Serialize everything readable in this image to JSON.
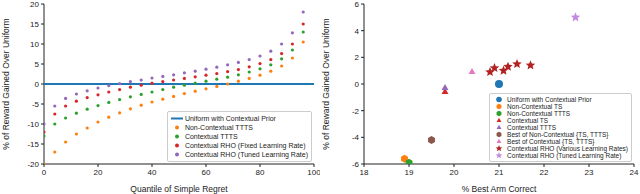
{
  "chart_data": [
    {
      "type": "scatter",
      "x_label": "Quantile of Simple Regret",
      "y_label": "% of Reward Gained Over Uniform",
      "xlim": [
        0,
        100
      ],
      "xticks": [
        0,
        20,
        40,
        60,
        80,
        100
      ],
      "ylim": [
        -20,
        20
      ],
      "yticks": [
        -20,
        -15,
        -10,
        -5,
        0,
        5,
        10,
        15,
        20
      ],
      "grid": false,
      "legend": "lower right",
      "series": [
        {
          "name": "Uniform with Contextual Prior",
          "color": "#1f77b4",
          "type": "line",
          "line_style": "solid",
          "x": [
            0,
            100
          ],
          "values": [
            0,
            0
          ]
        },
        {
          "name": "Non-Contextual TTTS",
          "color": "#ff7f0e",
          "type": "scatter",
          "marker": "circle",
          "x": [
            0,
            4,
            8,
            12,
            16,
            20,
            24,
            28,
            32,
            36,
            40,
            44,
            48,
            52,
            56,
            60,
            64,
            68,
            72,
            76,
            80,
            84,
            88,
            92,
            96
          ],
          "values": [
            -20,
            -17,
            -14.5,
            -12.5,
            -11,
            -9.5,
            -8.3,
            -7.2,
            -6.2,
            -5.3,
            -4.5,
            -3.8,
            -3.1,
            -2.4,
            -1.8,
            -1.2,
            -0.6,
            0,
            0.7,
            1.4,
            2.2,
            3.2,
            4.5,
            6.5,
            10.5
          ]
        },
        {
          "name": "Contextual TTTS",
          "color": "#2ca02c",
          "type": "scatter",
          "marker": "circle",
          "x": [
            0,
            4,
            8,
            12,
            16,
            20,
            24,
            28,
            32,
            36,
            40,
            44,
            48,
            52,
            56,
            60,
            64,
            68,
            72,
            76,
            80,
            84,
            88,
            92,
            96
          ],
          "values": [
            -13,
            -10,
            -8.5,
            -7.3,
            -6.3,
            -5.4,
            -4.6,
            -3.9,
            -3.2,
            -2.6,
            -2,
            -1.4,
            -0.8,
            -0.3,
            0.2,
            0.7,
            1.2,
            1.7,
            2.3,
            3,
            3.8,
            4.8,
            6.3,
            8.5,
            13
          ]
        },
        {
          "name": "Contextual RHO (Fixed Learning Rate)",
          "color": "#d62728",
          "type": "scatter",
          "marker": "circle",
          "x": [
            0,
            4,
            8,
            12,
            16,
            20,
            24,
            28,
            32,
            36,
            40,
            44,
            48,
            52,
            56,
            60,
            64,
            68,
            72,
            76,
            80,
            84,
            88,
            92,
            96
          ],
          "values": [
            -12,
            -7.5,
            -5.5,
            -4.3,
            -3.4,
            -2.7,
            -2,
            -1.4,
            -0.8,
            -0.3,
            0.2,
            0.6,
            1,
            1.4,
            1.8,
            2.2,
            2.6,
            3.1,
            3.6,
            4.3,
            5.1,
            6.1,
            7.6,
            10,
            15
          ]
        },
        {
          "name": "Contextual RHO (Tuned Learning Rate)",
          "color": "#9467bd",
          "type": "scatter",
          "marker": "circle",
          "x": [
            0,
            4,
            8,
            12,
            16,
            20,
            24,
            28,
            32,
            36,
            40,
            44,
            48,
            52,
            56,
            60,
            64,
            68,
            72,
            76,
            80,
            84,
            88,
            92,
            96
          ],
          "values": [
            -10,
            -5.5,
            -3.6,
            -2.5,
            -1.7,
            -1,
            -0.4,
            0.1,
            0.6,
            1,
            1.5,
            1.9,
            2.3,
            2.8,
            3.2,
            3.7,
            4.2,
            4.8,
            5.4,
            6.1,
            7,
            8.2,
            10,
            12.8,
            18
          ]
        }
      ]
    },
    {
      "type": "scatter",
      "x_label": "% Best Arm Correct",
      "y_label": "% of Reward Gained Over Uniform",
      "xlim": [
        18,
        24
      ],
      "xticks": [
        18,
        19,
        20,
        21,
        22,
        23,
        24
      ],
      "ylim": [
        -6,
        6
      ],
      "yticks": [
        -6,
        -4,
        -2,
        0,
        2,
        4,
        6
      ],
      "grid": false,
      "legend": "lower right",
      "series": [
        {
          "name": "Uniform with Contextual Prior",
          "color": "#1f77b4",
          "marker": "circle",
          "x": [
            21.0
          ],
          "values": [
            0
          ]
        },
        {
          "name": "Non-Contextual TS",
          "color": "#ff7f0e",
          "marker": "hexagon",
          "x": [
            18.9
          ],
          "values": [
            -5.6
          ]
        },
        {
          "name": "Non-Contextual TTTS",
          "color": "#2ca02c",
          "marker": "hexagon",
          "x": [
            19.0
          ],
          "values": [
            -5.9
          ]
        },
        {
          "name": "Contextual TS",
          "color": "#d62728",
          "marker": "triangle",
          "x": [
            19.8
          ],
          "values": [
            -0.6
          ]
        },
        {
          "name": "Contextual TTTS",
          "color": "#9467bd",
          "marker": "triangle",
          "x": [
            19.8
          ],
          "values": [
            -0.3
          ]
        },
        {
          "name": "Best of Non-Contextual {TS, TTTS}",
          "color": "#8c564b",
          "marker": "hexagon",
          "x": [
            19.5
          ],
          "values": [
            -4.2
          ]
        },
        {
          "name": "Best of Contextual {TS, TTTS}",
          "color": "#e377c2",
          "marker": "triangle",
          "x": [
            20.4
          ],
          "values": [
            0.9
          ]
        },
        {
          "name": "Contextual RHO (Various Learning Rates)",
          "color": "#b22222",
          "marker": "star",
          "x": [
            20.8,
            20.9,
            21.1,
            21.2,
            21.4,
            21.7
          ],
          "values": [
            0.9,
            1.2,
            1.0,
            1.3,
            1.5,
            1.4
          ]
        },
        {
          "name": "Contextual RHO (Tuned Learning Rate)",
          "color": "#c38be0",
          "marker": "star",
          "x": [
            22.7
          ],
          "values": [
            5.0
          ]
        }
      ]
    }
  ]
}
